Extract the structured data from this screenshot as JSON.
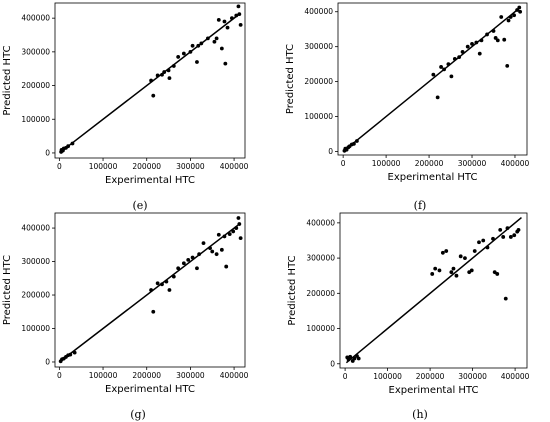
{
  "chart_data": [
    {
      "type": "scatter",
      "panel_label": "(e)",
      "xlabel": "Experimental HTC",
      "ylabel": "Predicted HTC",
      "xlim": [
        -10000,
        425000
      ],
      "ylim": [
        -15000,
        445000
      ],
      "xticks": [
        0,
        100000,
        200000,
        300000,
        400000
      ],
      "yticks": [
        0,
        100000,
        200000,
        300000,
        400000
      ],
      "fit_line": [
        [
          3000,
          3000
        ],
        [
          415000,
          415000
        ]
      ],
      "points": [
        [
          4000,
          3000
        ],
        [
          5000,
          9000
        ],
        [
          8000,
          7000
        ],
        [
          10000,
          13000
        ],
        [
          15000,
          15000
        ],
        [
          20000,
          20000
        ],
        [
          30000,
          28000
        ],
        [
          210000,
          215000
        ],
        [
          215000,
          170000
        ],
        [
          225000,
          230000
        ],
        [
          235000,
          232000
        ],
        [
          240000,
          240000
        ],
        [
          250000,
          245000
        ],
        [
          252000,
          222000
        ],
        [
          262000,
          258000
        ],
        [
          272000,
          285000
        ],
        [
          285000,
          295000
        ],
        [
          300000,
          300000
        ],
        [
          305000,
          318000
        ],
        [
          315000,
          270000
        ],
        [
          318000,
          318000
        ],
        [
          325000,
          325000
        ],
        [
          340000,
          340000
        ],
        [
          355000,
          330000
        ],
        [
          360000,
          340000
        ],
        [
          365000,
          395000
        ],
        [
          372000,
          310000
        ],
        [
          378000,
          390000
        ],
        [
          380000,
          265000
        ],
        [
          385000,
          372000
        ],
        [
          395000,
          400000
        ],
        [
          405000,
          408000
        ],
        [
          410000,
          435000
        ],
        [
          412000,
          412000
        ],
        [
          415000,
          380000
        ]
      ]
    },
    {
      "type": "scatter",
      "panel_label": "(f)",
      "xlabel": "Experimental HTC",
      "ylabel": "Predicted HTC",
      "xlim": [
        -12000,
        428000
      ],
      "ylim": [
        -10000,
        425000
      ],
      "xticks": [
        0,
        100000,
        200000,
        300000,
        400000
      ],
      "yticks": [
        0,
        100000,
        200000,
        300000,
        400000
      ],
      "fit_line": [
        [
          3000,
          3000
        ],
        [
          410000,
          410000
        ]
      ],
      "points": [
        [
          3000,
          2000
        ],
        [
          5000,
          8000
        ],
        [
          8000,
          5000
        ],
        [
          12000,
          12000
        ],
        [
          15000,
          15000
        ],
        [
          20000,
          20000
        ],
        [
          25000,
          22000
        ],
        [
          32000,
          30000
        ],
        [
          210000,
          220000
        ],
        [
          220000,
          155000
        ],
        [
          228000,
          242000
        ],
        [
          235000,
          235000
        ],
        [
          245000,
          250000
        ],
        [
          252000,
          215000
        ],
        [
          260000,
          265000
        ],
        [
          270000,
          270000
        ],
        [
          278000,
          285000
        ],
        [
          290000,
          300000
        ],
        [
          300000,
          308000
        ],
        [
          310000,
          312000
        ],
        [
          318000,
          280000
        ],
        [
          322000,
          318000
        ],
        [
          335000,
          335000
        ],
        [
          350000,
          345000
        ],
        [
          355000,
          325000
        ],
        [
          360000,
          318000
        ],
        [
          368000,
          385000
        ],
        [
          375000,
          320000
        ],
        [
          382000,
          245000
        ],
        [
          385000,
          375000
        ],
        [
          390000,
          385000
        ],
        [
          398000,
          390000
        ],
        [
          405000,
          405000
        ],
        [
          410000,
          412000
        ],
        [
          412000,
          400000
        ]
      ]
    },
    {
      "type": "scatter",
      "panel_label": "(g)",
      "xlabel": "Experimental HTC",
      "ylabel": "Predicted HTC",
      "xlim": [
        -10000,
        425000
      ],
      "ylim": [
        -15000,
        445000
      ],
      "xticks": [
        0,
        100000,
        200000,
        300000,
        400000
      ],
      "yticks": [
        0,
        100000,
        200000,
        300000,
        400000
      ],
      "fit_line": [
        [
          3000,
          3000
        ],
        [
          415000,
          415000
        ]
      ],
      "points": [
        [
          3000,
          2000
        ],
        [
          6000,
          8000
        ],
        [
          10000,
          10000
        ],
        [
          15000,
          15000
        ],
        [
          20000,
          20000
        ],
        [
          25000,
          22000
        ],
        [
          35000,
          28000
        ],
        [
          210000,
          215000
        ],
        [
          215000,
          150000
        ],
        [
          225000,
          235000
        ],
        [
          235000,
          232000
        ],
        [
          245000,
          240000
        ],
        [
          252000,
          215000
        ],
        [
          262000,
          255000
        ],
        [
          272000,
          280000
        ],
        [
          285000,
          295000
        ],
        [
          295000,
          305000
        ],
        [
          305000,
          312000
        ],
        [
          315000,
          280000
        ],
        [
          320000,
          322000
        ],
        [
          330000,
          355000
        ],
        [
          345000,
          340000
        ],
        [
          350000,
          330000
        ],
        [
          360000,
          322000
        ],
        [
          365000,
          380000
        ],
        [
          372000,
          335000
        ],
        [
          378000,
          375000
        ],
        [
          382000,
          285000
        ],
        [
          390000,
          382000
        ],
        [
          398000,
          390000
        ],
        [
          405000,
          400000
        ],
        [
          410000,
          430000
        ],
        [
          412000,
          412000
        ],
        [
          415000,
          370000
        ]
      ]
    },
    {
      "type": "scatter",
      "panel_label": "(h)",
      "xlabel": "Experimental HTC",
      "ylabel": "Predicted HTC",
      "xlim": [
        -12000,
        428000
      ],
      "ylim": [
        -12000,
        428000
      ],
      "xticks": [
        0,
        100000,
        200000,
        300000,
        400000
      ],
      "yticks": [
        0,
        100000,
        200000,
        300000,
        400000
      ],
      "fit_line": [
        [
          3000,
          3000
        ],
        [
          415000,
          415000
        ]
      ],
      "points": [
        [
          5000,
          18000
        ],
        [
          8000,
          12000
        ],
        [
          12000,
          20000
        ],
        [
          18000,
          8000
        ],
        [
          22000,
          15000
        ],
        [
          28000,
          22000
        ],
        [
          32000,
          15000
        ],
        [
          205000,
          255000
        ],
        [
          212000,
          270000
        ],
        [
          222000,
          265000
        ],
        [
          230000,
          315000
        ],
        [
          238000,
          320000
        ],
        [
          250000,
          260000
        ],
        [
          255000,
          270000
        ],
        [
          262000,
          250000
        ],
        [
          272000,
          305000
        ],
        [
          282000,
          300000
        ],
        [
          292000,
          260000
        ],
        [
          298000,
          265000
        ],
        [
          305000,
          320000
        ],
        [
          315000,
          345000
        ],
        [
          325000,
          350000
        ],
        [
          335000,
          330000
        ],
        [
          348000,
          355000
        ],
        [
          352000,
          260000
        ],
        [
          358000,
          255000
        ],
        [
          365000,
          380000
        ],
        [
          372000,
          360000
        ],
        [
          378000,
          185000
        ],
        [
          382000,
          385000
        ],
        [
          390000,
          360000
        ],
        [
          398000,
          365000
        ],
        [
          405000,
          375000
        ],
        [
          408000,
          380000
        ]
      ]
    }
  ]
}
